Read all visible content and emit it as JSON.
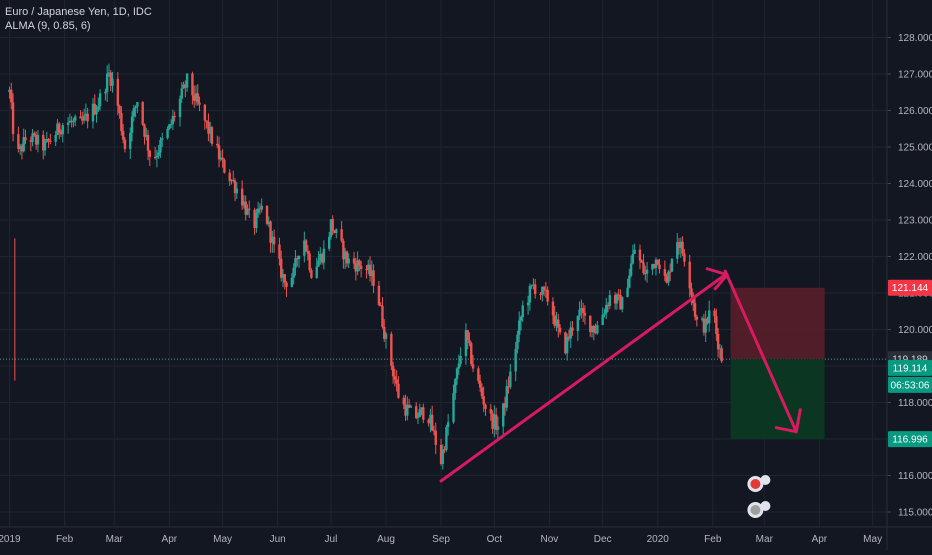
{
  "header": {
    "symbol_title": "Euro / Japanese Yen, 1D, IDC",
    "indicator": "ALMA (9, 0.85, 6)"
  },
  "price_axis": {
    "ticks": [
      "128.000",
      "127.000",
      "126.000",
      "125.000",
      "124.000",
      "123.000",
      "122.000",
      "121.000",
      "120.000",
      "119.000",
      "118.000",
      "117.000",
      "116.000",
      "115.000"
    ]
  },
  "time_axis": {
    "ticks": [
      {
        "label": "2019",
        "d": 0
      },
      {
        "label": "Feb",
        "d": 31
      },
      {
        "label": "Mar",
        "d": 59
      },
      {
        "label": "Apr",
        "d": 90
      },
      {
        "label": "May",
        "d": 120
      },
      {
        "label": "Jun",
        "d": 151
      },
      {
        "label": "Jul",
        "d": 181
      },
      {
        "label": "Aug",
        "d": 212
      },
      {
        "label": "Sep",
        "d": 243
      },
      {
        "label": "Oct",
        "d": 273
      },
      {
        "label": "Nov",
        "d": 304
      },
      {
        "label": "Dec",
        "d": 334
      },
      {
        "label": "2020",
        "d": 365
      },
      {
        "label": "Feb",
        "d": 396
      },
      {
        "label": "Mar",
        "d": 425
      },
      {
        "label": "Apr",
        "d": 456
      },
      {
        "label": "May",
        "d": 486
      }
    ]
  },
  "price_labels": {
    "stop": {
      "text": "121.144",
      "value": 121.144,
      "color": "#f23645"
    },
    "last_close": {
      "text": "119.189",
      "value": 119.189,
      "color": "#2a2e39"
    },
    "current": {
      "text": "119.114",
      "value": 119.114,
      "color": "#089981"
    },
    "countdown": {
      "text": "06:53:06",
      "color": "#089981"
    },
    "target": {
      "text": "116.996",
      "value": 116.996,
      "color": "#089981"
    }
  },
  "colors": {
    "up": "#26a69a",
    "down": "#ef5350",
    "drawing": "#d81b60",
    "loss_zone": "#5c1e2a",
    "profit_zone": "#0b3a21",
    "background": "#131722",
    "grid": "#1f2433"
  },
  "chart_data": {
    "type": "candlestick",
    "title": "Euro / Japanese Yen, 1D, IDC",
    "ylim": [
      114.8,
      128.4
    ],
    "x_range_days": [
      0,
      500
    ],
    "anchors": [
      [
        0,
        126.5
      ],
      [
        2,
        125.5
      ],
      [
        3,
        122.8
      ],
      [
        5,
        124.8
      ],
      [
        10,
        125.3
      ],
      [
        20,
        125.0
      ],
      [
        31,
        125.7
      ],
      [
        40,
        125.6
      ],
      [
        50,
        126.2
      ],
      [
        56,
        127.0
      ],
      [
        59,
        126.7
      ],
      [
        65,
        125.0
      ],
      [
        72,
        126.3
      ],
      [
        80,
        124.6
      ],
      [
        90,
        125.5
      ],
      [
        100,
        126.8
      ],
      [
        110,
        125.7
      ],
      [
        120,
        124.5
      ],
      [
        130,
        123.7
      ],
      [
        137,
        122.8
      ],
      [
        143,
        123.4
      ],
      [
        150,
        122.0
      ],
      [
        155,
        121.3
      ],
      [
        160,
        121.5
      ],
      [
        165,
        122.7
      ],
      [
        170,
        121.6
      ],
      [
        178,
        122.2
      ],
      [
        181,
        122.9
      ],
      [
        190,
        121.9
      ],
      [
        200,
        121.7
      ],
      [
        206,
        121.3
      ],
      [
        212,
        119.7
      ],
      [
        220,
        118.0
      ],
      [
        228,
        117.6
      ],
      [
        235,
        117.8
      ],
      [
        243,
        116.4
      ],
      [
        250,
        118.2
      ],
      [
        256,
        120.0
      ],
      [
        262,
        118.8
      ],
      [
        270,
        117.6
      ],
      [
        276,
        117.3
      ],
      [
        283,
        119.0
      ],
      [
        289,
        120.6
      ],
      [
        295,
        121.2
      ],
      [
        304,
        120.8
      ],
      [
        312,
        119.4
      ],
      [
        320,
        120.5
      ],
      [
        330,
        120.0
      ],
      [
        338,
        120.9
      ],
      [
        345,
        120.7
      ],
      [
        352,
        122.2
      ],
      [
        358,
        121.5
      ],
      [
        365,
        122.0
      ],
      [
        370,
        121.2
      ],
      [
        375,
        122.6
      ],
      [
        381,
        121.9
      ],
      [
        387,
        120.2
      ],
      [
        392,
        120.1
      ],
      [
        396,
        120.7
      ],
      [
        398,
        119.9
      ],
      [
        402,
        119.0
      ]
    ],
    "ohlc_note": "daily EUR/JPY candles interpolated between the anchor closes (day offset from 2019-01-01, price)",
    "indicator": {
      "name": "ALMA (9, 0.85, 6)"
    },
    "drawings": {
      "trendline": {
        "from": [
          243,
          115.85
        ],
        "to": [
          403,
          121.5
        ]
      },
      "arrow": {
        "from": [
          403,
          121.6
        ],
        "to": [
          443,
          117.2
        ]
      },
      "short_position": {
        "day_start": 406,
        "day_end": 459,
        "entry": 119.189,
        "stop": 121.144,
        "target": 116.996
      }
    }
  }
}
